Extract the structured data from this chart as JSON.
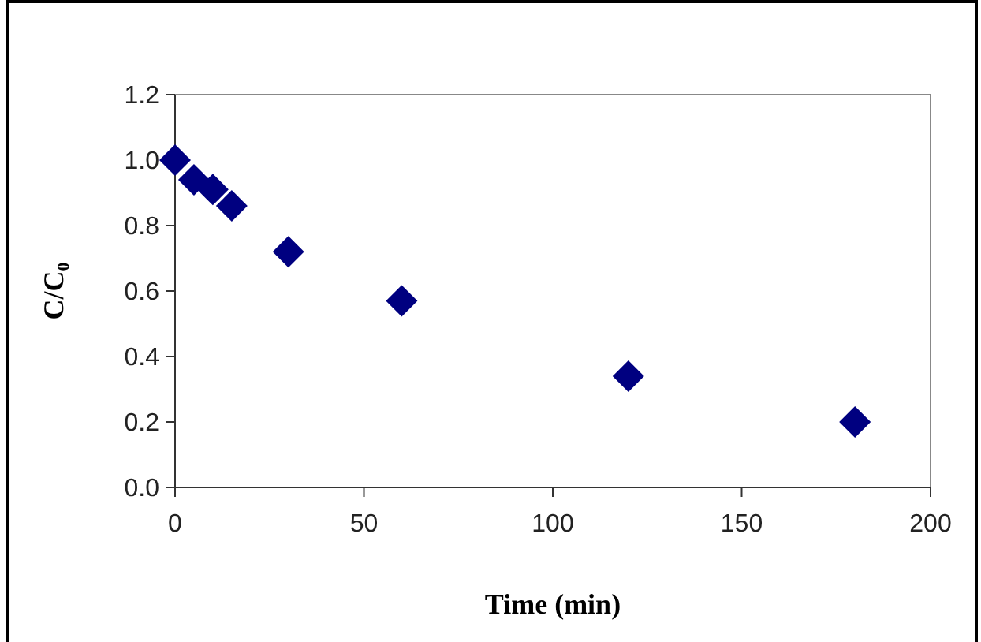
{
  "chart_data": {
    "type": "scatter",
    "xlabel": "Time (min)",
    "ylabel": "C/C₀",
    "x": [
      0,
      5,
      10,
      15,
      30,
      60,
      120,
      180
    ],
    "series": [
      {
        "color": "#000080",
        "values": [
          1.0,
          0.94,
          0.91,
          0.86,
          0.72,
          0.57,
          0.34,
          0.2
        ]
      }
    ],
    "xlim": [
      0,
      200
    ],
    "xticks": [
      0,
      50,
      100,
      150,
      200
    ],
    "ylim": [
      0,
      1.2
    ],
    "yticks": [
      {
        "value": 0,
        "label": "0.0"
      },
      {
        "value": 0.2,
        "label": "0.2"
      },
      {
        "value": 0.4,
        "label": "0.4"
      },
      {
        "value": 0.6,
        "label": "0.6"
      },
      {
        "value": 0.8,
        "label": "0.8"
      },
      {
        "value": 1.0,
        "label": "1.0"
      },
      {
        "value": 1.2,
        "label": "1.2"
      }
    ],
    "grid": false,
    "marker": "diamond"
  }
}
